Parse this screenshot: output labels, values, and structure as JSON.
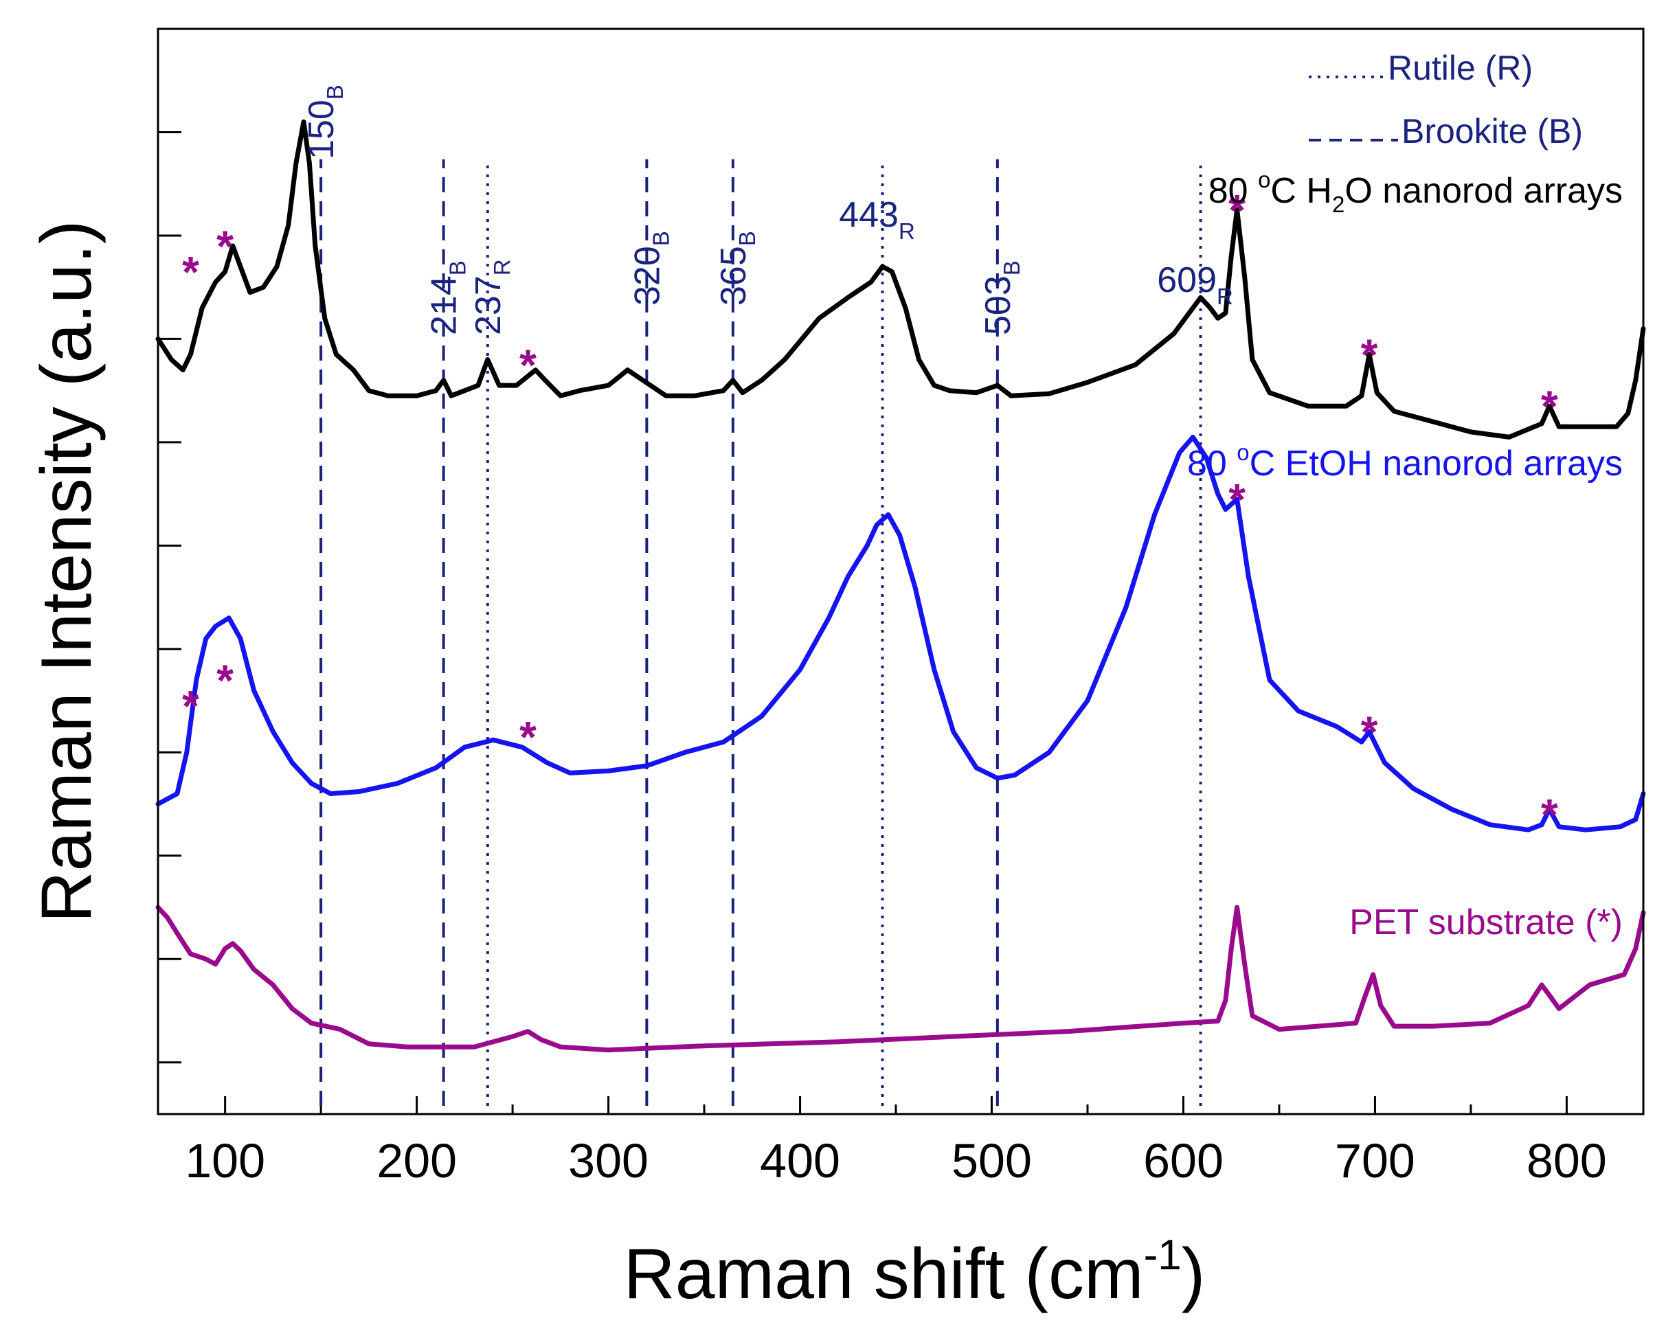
{
  "chart_data": {
    "type": "line",
    "xlabel": "Raman shift (cm-1)",
    "xlabel_base": "Raman shift (cm",
    "xlabel_sup": "-1",
    "xlabel_end": ")",
    "ylabel": "Raman Intensity (a.u.)",
    "xlim": [
      65,
      840
    ],
    "ylim": [
      0,
      10.5
    ],
    "xticks": [
      {
        "value": 100,
        "label": "100"
      },
      {
        "value": 200,
        "label": "200"
      },
      {
        "value": 300,
        "label": "300"
      },
      {
        "value": 400,
        "label": "400"
      },
      {
        "value": 500,
        "label": "500"
      },
      {
        "value": 600,
        "label": "600"
      },
      {
        "value": 700,
        "label": "700"
      },
      {
        "value": 800,
        "label": "800"
      }
    ],
    "yticks": [
      0.5,
      1.5,
      2.5,
      3.5,
      4.5,
      5.5,
      6.5,
      7.5,
      8.5,
      9.5,
      10.5
    ],
    "legend": [
      {
        "label": "Rutile (R)",
        "style": "dotted",
        "color": "#1a237e"
      },
      {
        "label": "Brookite (B)",
        "style": "dashed",
        "color": "#1a237e"
      }
    ],
    "reference_lines": [
      {
        "x": 150,
        "number": "150",
        "phase": "B",
        "style": "dashed"
      },
      {
        "x": 214,
        "number": "214",
        "phase": "B",
        "style": "dashed"
      },
      {
        "x": 237,
        "number": "237",
        "phase": "R",
        "style": "dotted"
      },
      {
        "x": 320,
        "number": "320",
        "phase": "B",
        "style": "dashed"
      },
      {
        "x": 365,
        "number": "365",
        "phase": "B",
        "style": "dashed"
      },
      {
        "x": 443,
        "number": "443",
        "phase": "R",
        "style": "dotted"
      },
      {
        "x": 503,
        "number": "503",
        "phase": "B",
        "style": "dashed"
      },
      {
        "x": 609,
        "number": "609",
        "phase": "R",
        "style": "dotted"
      }
    ],
    "series": [
      {
        "name": "80 oC H2O nanorod arrays",
        "label_parts": {
          "pre": "80 ",
          "deg": "o",
          "mid": "C H",
          "sub": "2",
          "post": "O nanorod arrays"
        },
        "color": "#000000",
        "points": [
          [
            65,
            7.5
          ],
          [
            72,
            7.3
          ],
          [
            78,
            7.2
          ],
          [
            82,
            7.35
          ],
          [
            88,
            7.8
          ],
          [
            95,
            8.05
          ],
          [
            100,
            8.15
          ],
          [
            104,
            8.4
          ],
          [
            108,
            8.2
          ],
          [
            113,
            7.95
          ],
          [
            120,
            8.0
          ],
          [
            127,
            8.2
          ],
          [
            133,
            8.6
          ],
          [
            137,
            9.2
          ],
          [
            141,
            9.6
          ],
          [
            144,
            9.2
          ],
          [
            147,
            8.4
          ],
          [
            152,
            7.7
          ],
          [
            158,
            7.35
          ],
          [
            167,
            7.2
          ],
          [
            175,
            7.0
          ],
          [
            185,
            6.95
          ],
          [
            200,
            6.95
          ],
          [
            210,
            7.0
          ],
          [
            214,
            7.1
          ],
          [
            218,
            6.95
          ],
          [
            225,
            7.0
          ],
          [
            232,
            7.05
          ],
          [
            237,
            7.3
          ],
          [
            243,
            7.05
          ],
          [
            252,
            7.05
          ],
          [
            262,
            7.2
          ],
          [
            267,
            7.1
          ],
          [
            275,
            6.95
          ],
          [
            285,
            7.0
          ],
          [
            300,
            7.05
          ],
          [
            310,
            7.2
          ],
          [
            318,
            7.1
          ],
          [
            330,
            6.95
          ],
          [
            345,
            6.95
          ],
          [
            360,
            7.0
          ],
          [
            365,
            7.1
          ],
          [
            370,
            6.98
          ],
          [
            380,
            7.1
          ],
          [
            392,
            7.3
          ],
          [
            410,
            7.7
          ],
          [
            425,
            7.9
          ],
          [
            437,
            8.05
          ],
          [
            443,
            8.2
          ],
          [
            448,
            8.15
          ],
          [
            455,
            7.8
          ],
          [
            462,
            7.3
          ],
          [
            470,
            7.05
          ],
          [
            478,
            7.0
          ],
          [
            492,
            6.98
          ],
          [
            503,
            7.05
          ],
          [
            510,
            6.95
          ],
          [
            530,
            6.97
          ],
          [
            550,
            7.08
          ],
          [
            575,
            7.25
          ],
          [
            595,
            7.55
          ],
          [
            605,
            7.8
          ],
          [
            609,
            7.9
          ],
          [
            614,
            7.8
          ],
          [
            618,
            7.7
          ],
          [
            622,
            7.75
          ],
          [
            625,
            8.3
          ],
          [
            628,
            8.75
          ],
          [
            632,
            8.1
          ],
          [
            636,
            7.3
          ],
          [
            645,
            6.98
          ],
          [
            665,
            6.85
          ],
          [
            685,
            6.85
          ],
          [
            693,
            6.95
          ],
          [
            697,
            7.35
          ],
          [
            701,
            6.98
          ],
          [
            710,
            6.8
          ],
          [
            730,
            6.7
          ],
          [
            750,
            6.6
          ],
          [
            770,
            6.55
          ],
          [
            787,
            6.68
          ],
          [
            791,
            6.85
          ],
          [
            796,
            6.65
          ],
          [
            810,
            6.65
          ],
          [
            826,
            6.65
          ],
          [
            832,
            6.78
          ],
          [
            836,
            7.1
          ],
          [
            840,
            7.6
          ]
        ]
      },
      {
        "name": "80 oC EtOH nanorod arrays",
        "label_parts": {
          "pre": "80 ",
          "deg": "o",
          "mid": "C EtOH nanorod arrays",
          "sub": "",
          "post": ""
        },
        "color": "#1414f0",
        "points": [
          [
            65,
            3.0
          ],
          [
            75,
            3.1
          ],
          [
            80,
            3.5
          ],
          [
            85,
            4.2
          ],
          [
            90,
            4.6
          ],
          [
            95,
            4.72
          ],
          [
            102,
            4.8
          ],
          [
            108,
            4.6
          ],
          [
            115,
            4.1
          ],
          [
            125,
            3.7
          ],
          [
            135,
            3.4
          ],
          [
            145,
            3.2
          ],
          [
            155,
            3.1
          ],
          [
            170,
            3.12
          ],
          [
            190,
            3.2
          ],
          [
            210,
            3.35
          ],
          [
            225,
            3.55
          ],
          [
            240,
            3.62
          ],
          [
            255,
            3.55
          ],
          [
            268,
            3.4
          ],
          [
            280,
            3.3
          ],
          [
            300,
            3.32
          ],
          [
            320,
            3.37
          ],
          [
            340,
            3.5
          ],
          [
            360,
            3.6
          ],
          [
            380,
            3.85
          ],
          [
            400,
            4.3
          ],
          [
            415,
            4.8
          ],
          [
            425,
            5.2
          ],
          [
            435,
            5.5
          ],
          [
            440,
            5.7
          ],
          [
            446,
            5.8
          ],
          [
            452,
            5.6
          ],
          [
            460,
            5.1
          ],
          [
            470,
            4.3
          ],
          [
            480,
            3.7
          ],
          [
            492,
            3.35
          ],
          [
            503,
            3.25
          ],
          [
            512,
            3.28
          ],
          [
            530,
            3.5
          ],
          [
            550,
            4.0
          ],
          [
            570,
            4.9
          ],
          [
            585,
            5.8
          ],
          [
            598,
            6.4
          ],
          [
            605,
            6.55
          ],
          [
            612,
            6.35
          ],
          [
            618,
            6.0
          ],
          [
            622,
            5.85
          ],
          [
            628,
            5.95
          ],
          [
            634,
            5.2
          ],
          [
            645,
            4.2
          ],
          [
            660,
            3.9
          ],
          [
            680,
            3.75
          ],
          [
            693,
            3.6
          ],
          [
            697,
            3.7
          ],
          [
            705,
            3.4
          ],
          [
            720,
            3.15
          ],
          [
            740,
            2.95
          ],
          [
            760,
            2.8
          ],
          [
            780,
            2.75
          ],
          [
            787,
            2.8
          ],
          [
            791,
            2.95
          ],
          [
            796,
            2.78
          ],
          [
            810,
            2.75
          ],
          [
            828,
            2.78
          ],
          [
            836,
            2.85
          ],
          [
            840,
            3.1
          ]
        ]
      },
      {
        "name": "PET substrate (*)",
        "label_parts": {
          "pre": "PET substrate (*)",
          "deg": "",
          "mid": "",
          "sub": "",
          "post": ""
        },
        "color": "#9a0a8c",
        "points": [
          [
            65,
            2.0
          ],
          [
            70,
            1.9
          ],
          [
            75,
            1.75
          ],
          [
            82,
            1.55
          ],
          [
            90,
            1.5
          ],
          [
            95,
            1.45
          ],
          [
            100,
            1.6
          ],
          [
            104,
            1.65
          ],
          [
            108,
            1.58
          ],
          [
            115,
            1.4
          ],
          [
            125,
            1.25
          ],
          [
            135,
            1.02
          ],
          [
            145,
            0.88
          ],
          [
            160,
            0.82
          ],
          [
            175,
            0.68
          ],
          [
            195,
            0.65
          ],
          [
            230,
            0.65
          ],
          [
            250,
            0.75
          ],
          [
            258,
            0.8
          ],
          [
            265,
            0.72
          ],
          [
            275,
            0.65
          ],
          [
            300,
            0.62
          ],
          [
            350,
            0.66
          ],
          [
            420,
            0.7
          ],
          [
            480,
            0.75
          ],
          [
            540,
            0.8
          ],
          [
            600,
            0.88
          ],
          [
            618,
            0.9
          ],
          [
            622,
            1.1
          ],
          [
            625,
            1.6
          ],
          [
            628,
            2.0
          ],
          [
            632,
            1.45
          ],
          [
            636,
            0.95
          ],
          [
            650,
            0.82
          ],
          [
            670,
            0.85
          ],
          [
            690,
            0.88
          ],
          [
            695,
            1.15
          ],
          [
            699,
            1.35
          ],
          [
            703,
            1.05
          ],
          [
            710,
            0.85
          ],
          [
            730,
            0.85
          ],
          [
            760,
            0.88
          ],
          [
            780,
            1.05
          ],
          [
            787,
            1.25
          ],
          [
            791,
            1.15
          ],
          [
            796,
            1.02
          ],
          [
            812,
            1.25
          ],
          [
            830,
            1.35
          ],
          [
            836,
            1.6
          ],
          [
            840,
            1.95
          ]
        ]
      }
    ],
    "pet_markers": [
      {
        "x": 82,
        "y": 8.2,
        "color": "#9a0a8c"
      },
      {
        "x": 100,
        "y": 8.45,
        "color": "#9a0a8c"
      },
      {
        "x": 258,
        "y": 7.3,
        "color": "#9a0a8c"
      },
      {
        "x": 628,
        "y": 8.8,
        "color": "#9a0a8c"
      },
      {
        "x": 697,
        "y": 7.4,
        "color": "#9a0a8c"
      },
      {
        "x": 791,
        "y": 6.9,
        "color": "#9a0a8c"
      },
      {
        "x": 82,
        "y": 4.0,
        "color": "#9a0a8c"
      },
      {
        "x": 100,
        "y": 4.25,
        "color": "#9a0a8c"
      },
      {
        "x": 258,
        "y": 3.7,
        "color": "#9a0a8c"
      },
      {
        "x": 628,
        "y": 6.0,
        "color": "#9a0a8c"
      },
      {
        "x": 697,
        "y": 3.75,
        "color": "#9a0a8c"
      },
      {
        "x": 791,
        "y": 2.95,
        "color": "#9a0a8c"
      }
    ],
    "star_glyph": "*",
    "colors": {
      "reference": "#1a237e",
      "axis": "#000000"
    }
  }
}
